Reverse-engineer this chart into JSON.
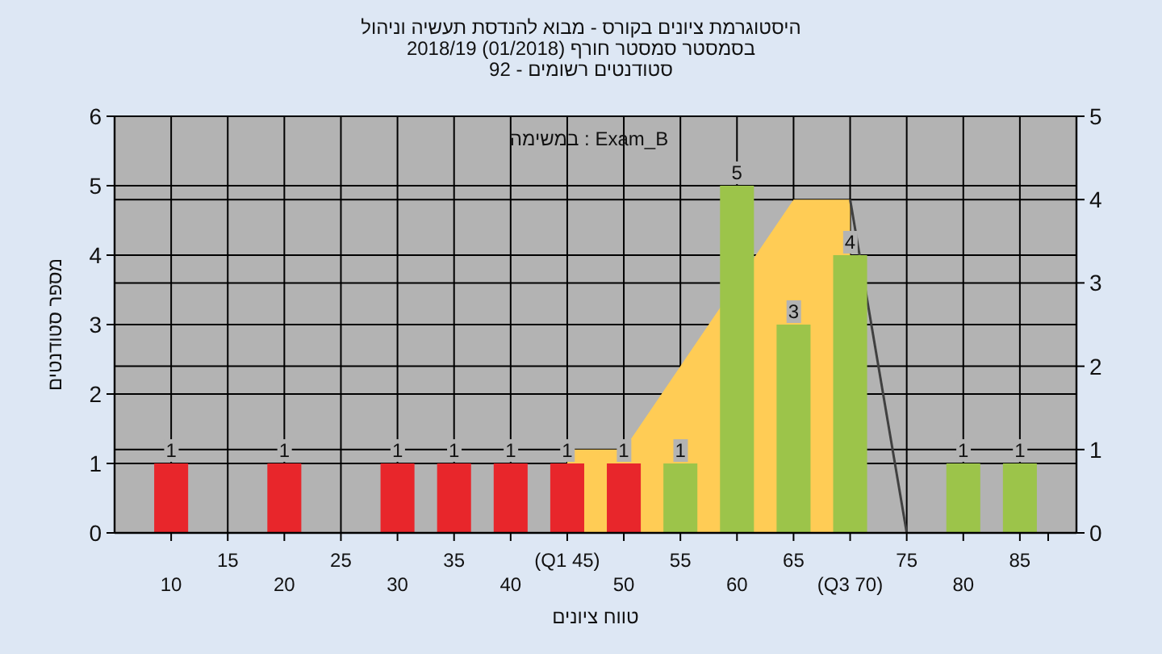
{
  "chart_data": {
    "type": "bar",
    "title": "היסטוגרמת ציונים בקורס - מבוא להנדסת תעשיה וניהול",
    "subtitle": "בסמסטר סמסטר חורף (01/2018) 2018/19",
    "annotations": [
      "סטודנטים רשומים - 92",
      "Exam_B : במשימה"
    ],
    "xlabel": "טווח ציונים",
    "ylabel": "מספר סטודנטים",
    "categories": [
      "10",
      "15",
      "20",
      "25",
      "30",
      "35",
      "40",
      "(Q1 45)",
      "50",
      "55",
      "60",
      "65",
      "(Q3 70)",
      "75",
      "80",
      "85"
    ],
    "series": [
      {
        "colors": [
          "#e8262b",
          "#e8262b",
          "#e8262b",
          "#e8262b",
          "#e8262b",
          "#e8262b",
          "#e8262b",
          "#e8262b",
          "#e8262b",
          "#9cc44a",
          "#9cc44a",
          "#9cc44a",
          "#9cc44a",
          "#9cc44a",
          "#9cc44a",
          "#9cc44a"
        ],
        "values": [
          1,
          0,
          1,
          0,
          1,
          1,
          1,
          1,
          1,
          1,
          5,
          3,
          4,
          0,
          1,
          1
        ],
        "value_labels": [
          "1",
          null,
          "1",
          null,
          "1",
          "1",
          "1",
          "1",
          "1",
          "1",
          "5",
          "3",
          "4",
          null,
          "1",
          "1"
        ]
      },
      {
        "type": "area",
        "axis": "y2",
        "color": "#ffcc55",
        "values": [
          null,
          null,
          null,
          null,
          null,
          null,
          null,
          1,
          1,
          2,
          null,
          4,
          4,
          null,
          null,
          null
        ]
      },
      {
        "type": "line",
        "axis": "y2",
        "color": "#404040",
        "values": [
          null,
          null,
          null,
          null,
          null,
          null,
          null,
          null,
          null,
          null,
          null,
          null,
          4,
          0,
          null,
          null
        ]
      }
    ],
    "ylim": [
      0,
      6
    ],
    "yticks": [
      0,
      1,
      2,
      3,
      4,
      5,
      6
    ],
    "y2lim": [
      0,
      5
    ],
    "y2ticks": [
      0,
      1,
      2,
      3,
      4,
      5
    ],
    "grid": true
  }
}
